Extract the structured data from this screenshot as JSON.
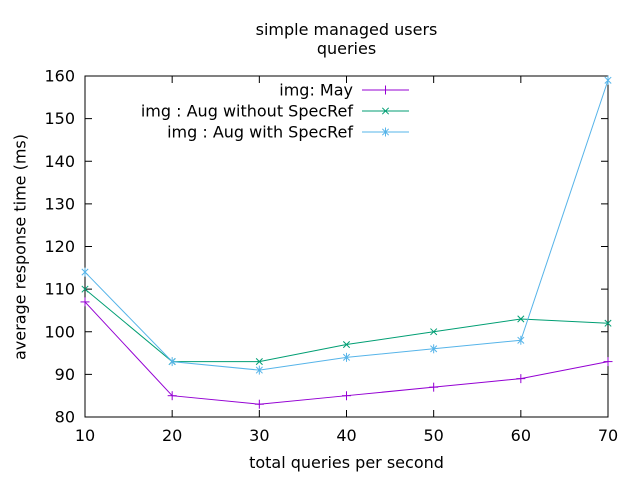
{
  "chart_data": {
    "type": "line",
    "title": "simple managed users",
    "subtitle": "queries",
    "xlabel": "total queries per second",
    "ylabel": "average response time (ms)",
    "x": [
      10,
      20,
      30,
      40,
      50,
      60,
      70
    ],
    "xlim": [
      10,
      70
    ],
    "ylim": [
      80,
      160
    ],
    "x_ticks": [
      10,
      20,
      30,
      40,
      50,
      60,
      70
    ],
    "y_ticks": [
      80,
      90,
      100,
      110,
      120,
      130,
      140,
      150,
      160
    ],
    "grid": false,
    "legend_position": "top-center-inside",
    "background_color": "#ffffff",
    "axis_color": "#000000",
    "series": [
      {
        "name": "img: May",
        "color": "#9400d3",
        "marker": "plus",
        "values": [
          107,
          85,
          83,
          85,
          87,
          89,
          93
        ]
      },
      {
        "name": "img : Aug without SpecRef",
        "color": "#009e73",
        "marker": "cross",
        "values": [
          110,
          93,
          93,
          97,
          100,
          103,
          102
        ]
      },
      {
        "name": "img : Aug with SpecRef",
        "color": "#56b4e9",
        "marker": "asterisk",
        "values": [
          114,
          93,
          91,
          94,
          96,
          98,
          159
        ]
      }
    ]
  }
}
